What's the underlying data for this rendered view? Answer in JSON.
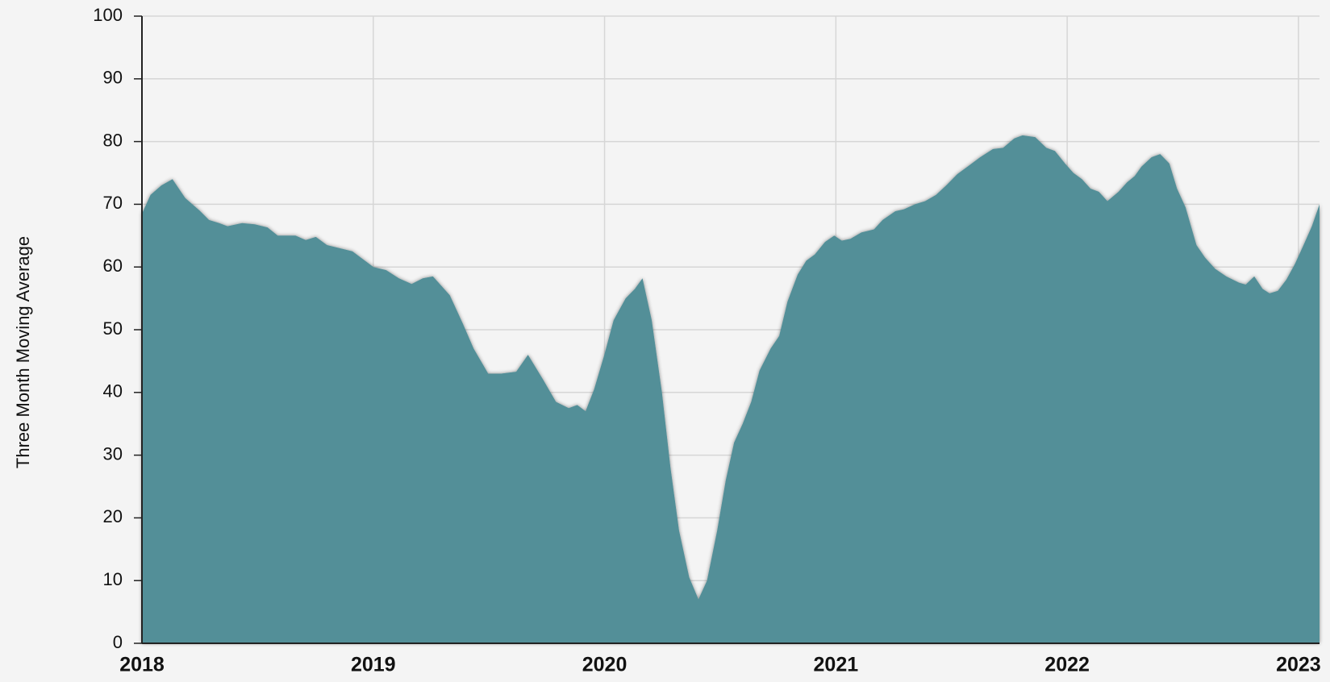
{
  "chart_data": {
    "type": "area",
    "y_label": "Three Month Moving Average",
    "color": "#528f98",
    "grid": true,
    "xlim": [
      2018,
      2023.091
    ],
    "ylim": [
      0,
      100
    ],
    "xticks": [
      2018,
      2019,
      2020,
      2021,
      2022,
      2023
    ],
    "yticks": [
      0,
      10,
      20,
      30,
      40,
      50,
      60,
      70,
      80,
      90,
      100
    ],
    "x": [
      2018,
      2018.037,
      2018.084,
      2018.132,
      2018.187,
      2018.249,
      2018.29,
      2018.334,
      2018.37,
      2018.433,
      2018.488,
      2018.543,
      2018.587,
      2018.664,
      2018.708,
      2018.752,
      2018.8,
      2018.855,
      2018.91,
      2018.946,
      2019.001,
      2019.056,
      2019.111,
      2019.166,
      2019.214,
      2019.258,
      2019.331,
      2019.387,
      2019.434,
      2019.497,
      2019.552,
      2019.618,
      2019.669,
      2019.735,
      2019.79,
      2019.845,
      2019.882,
      2019.918,
      2019.955,
      2019.999,
      2020.039,
      2020.091,
      2020.131,
      2020.164,
      2020.204,
      2020.248,
      2020.285,
      2020.322,
      2020.366,
      2020.406,
      2020.443,
      2020.487,
      2020.524,
      2020.56,
      2020.597,
      2020.634,
      2020.67,
      2020.718,
      2020.755,
      2020.791,
      2020.835,
      2020.872,
      2020.909,
      2020.953,
      2020.993,
      2021.026,
      2021.063,
      2021.11,
      2021.165,
      2021.202,
      2021.257,
      2021.294,
      2021.342,
      2021.386,
      2021.433,
      2021.477,
      2021.525,
      2021.569,
      2021.624,
      2021.679,
      2021.723,
      2021.771,
      2021.807,
      2021.862,
      2021.91,
      2021.947,
      2021.991,
      2022.027,
      2022.064,
      2022.101,
      2022.137,
      2022.174,
      2022.222,
      2022.259,
      2022.292,
      2022.321,
      2022.365,
      2022.402,
      2022.442,
      2022.475,
      2022.512,
      2022.559,
      2022.596,
      2022.64,
      2022.688,
      2022.743,
      2022.772,
      2022.809,
      2022.845,
      2022.875,
      2022.911,
      2022.948,
      2022.985,
      2023.022,
      2023.058,
      2023.091
    ],
    "values": [
      68.5,
      71.5,
      73,
      74,
      71,
      69,
      67.5,
      67,
      66.5,
      67,
      66.8,
      66.3,
      65,
      65,
      64.3,
      64.8,
      63.5,
      63,
      62.5,
      61.5,
      60,
      59.5,
      58.2,
      57.3,
      58.2,
      58.5,
      55.5,
      51,
      47,
      43,
      43,
      43.3,
      46,
      42,
      38.5,
      37.5,
      38,
      37,
      40.5,
      46,
      51.5,
      55,
      56.5,
      58.2,
      51.5,
      40,
      28,
      18,
      10.5,
      7,
      10,
      18,
      26,
      32,
      35,
      38.5,
      43.5,
      47,
      49,
      54.5,
      58.8,
      61,
      62,
      64,
      65,
      64.2,
      64.5,
      65.5,
      66,
      67.5,
      68.9,
      69.2,
      70,
      70.5,
      71.5,
      73,
      74.8,
      76,
      77.5,
      78.8,
      79,
      80.5,
      81,
      80.7,
      79,
      78.5,
      76.5,
      75,
      74,
      72.5,
      72,
      70.5,
      72,
      73.5,
      74.5,
      76,
      77.5,
      78,
      76.5,
      72.5,
      69.5,
      63.5,
      61.5,
      59.7,
      58.5,
      57.5,
      57.2,
      58.5,
      56.5,
      55.8,
      56.2,
      58,
      60.5,
      63.5,
      66.5,
      70
    ]
  }
}
